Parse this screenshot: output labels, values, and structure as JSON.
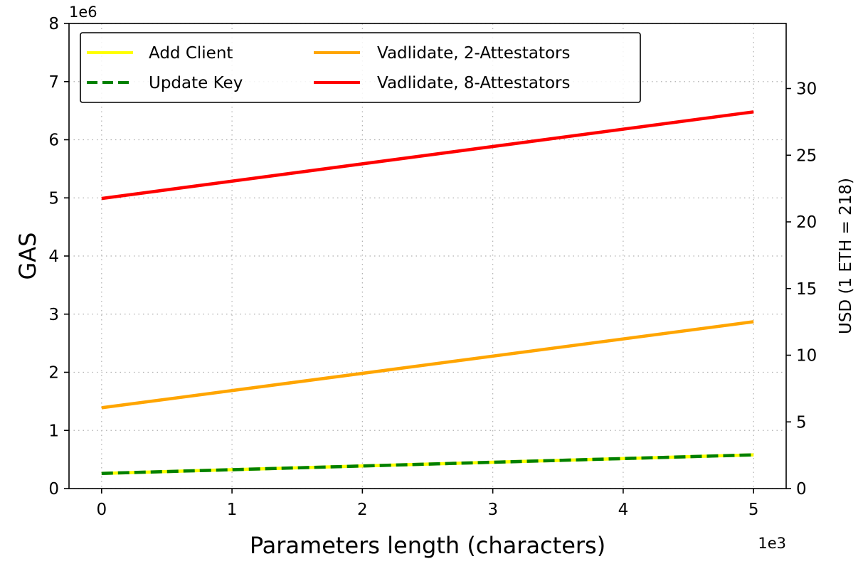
{
  "chart_data": {
    "type": "line",
    "xlabel": "Parameters length (characters)",
    "ylabel": "GAS",
    "y2label": "USD (1 ETH = 218)",
    "x_offset_label": "1e3",
    "y_offset_label": "1e6",
    "xlim": [
      -0.25,
      5.25
    ],
    "ylim": [
      0,
      8
    ],
    "y2lim": [
      0,
      34.88
    ],
    "x_ticks": [
      0,
      1,
      2,
      3,
      4,
      5
    ],
    "y_ticks": [
      0,
      1,
      2,
      3,
      4,
      5,
      6,
      7,
      8
    ],
    "y2_ticks": [
      0,
      5,
      10,
      15,
      20,
      25,
      30
    ],
    "grid": true,
    "legend_position": "top-left",
    "x": [
      0,
      5
    ],
    "series": [
      {
        "name": "Add Client",
        "color": "#ffff00",
        "dash": "solid",
        "values": [
          0.26,
          0.58
        ]
      },
      {
        "name": "Update Key",
        "color": "#008000",
        "dash": "dashed",
        "values": [
          0.26,
          0.58
        ]
      },
      {
        "name": "Vadlidate, 2-Attestators",
        "color": "#ffa500",
        "dash": "solid",
        "values": [
          1.39,
          2.87
        ]
      },
      {
        "name": "Vadlidate, 8-Attestators",
        "color": "#ff0000",
        "dash": "solid",
        "values": [
          4.99,
          6.48
        ]
      }
    ]
  }
}
